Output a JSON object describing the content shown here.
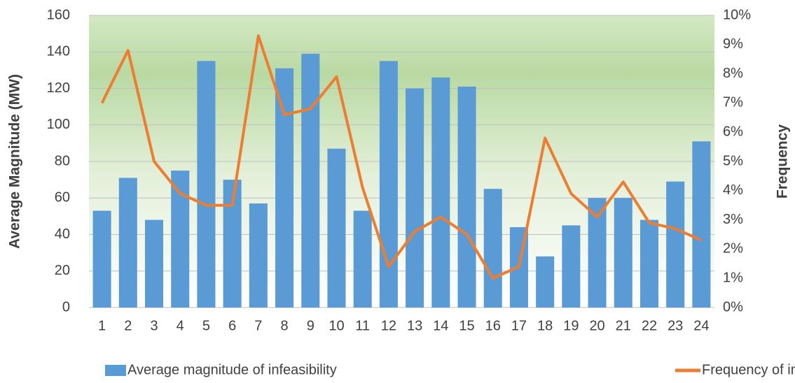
{
  "chart_data": {
    "type": "bar-line",
    "y_label": "Average Magnitude (MW)",
    "y2_label": "Frequency",
    "categories": [
      "1",
      "2",
      "3",
      "4",
      "5",
      "6",
      "7",
      "8",
      "9",
      "10",
      "11",
      "12",
      "13",
      "14",
      "15",
      "16",
      "17",
      "18",
      "19",
      "20",
      "21",
      "22",
      "23",
      "24"
    ],
    "series": [
      {
        "name": "Average magnitude of infeasibility",
        "type": "bar",
        "color": "#5b9bd5",
        "values": [
          53,
          71,
          48,
          75,
          135,
          70,
          57,
          131,
          139,
          87,
          53,
          135,
          120,
          126,
          121,
          65,
          44,
          28,
          45,
          60,
          60,
          48,
          69,
          91
        ]
      },
      {
        "name": "Frequency of infeasibility",
        "type": "line",
        "axis": "y2",
        "color": "#ed7d31",
        "values": [
          7.0,
          8.8,
          5.0,
          3.9,
          3.5,
          3.5,
          9.3,
          6.6,
          6.8,
          7.9,
          4.1,
          1.4,
          2.6,
          3.1,
          2.5,
          1.0,
          1.4,
          5.8,
          3.9,
          3.1,
          4.3,
          2.9,
          2.7,
          2.3
        ]
      }
    ],
    "ylim": [
      0,
      160
    ],
    "yticks": [
      0,
      20,
      40,
      60,
      80,
      100,
      120,
      140,
      160
    ],
    "y2lim": [
      0,
      10
    ],
    "y2ticks": [
      {
        "value": 0,
        "label": "0%"
      },
      {
        "value": 1,
        "label": "1%"
      },
      {
        "value": 2,
        "label": "2%"
      },
      {
        "value": 3,
        "label": "3%"
      },
      {
        "value": 4,
        "label": "4%"
      },
      {
        "value": 5,
        "label": "5%"
      },
      {
        "value": 6,
        "label": "6%"
      },
      {
        "value": 7,
        "label": "7%"
      },
      {
        "value": 8,
        "label": "8%"
      },
      {
        "value": 9,
        "label": "9%"
      },
      {
        "value": 10,
        "label": "10%"
      }
    ],
    "grid": true,
    "legend": "bottom"
  }
}
